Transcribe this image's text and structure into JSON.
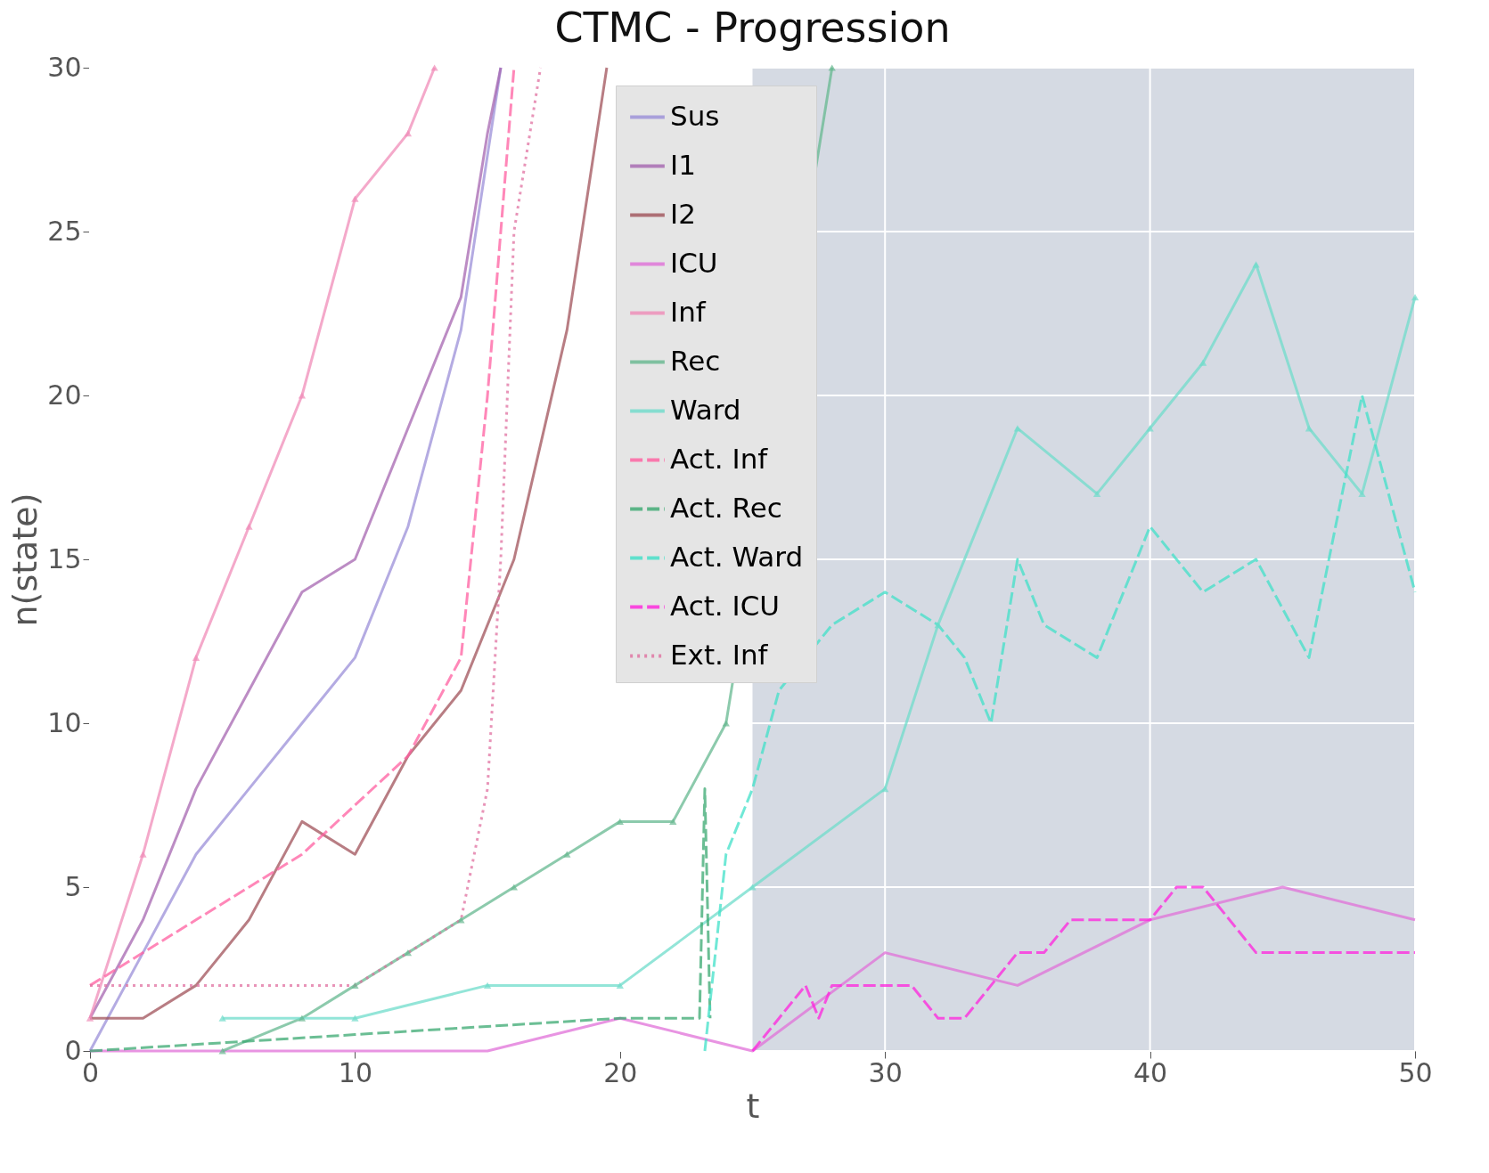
{
  "chart_data": {
    "type": "line",
    "title": "CTMC - Progression",
    "xlabel": "t",
    "ylabel": "n(state)",
    "xlim": [
      0,
      50
    ],
    "ylim": [
      0,
      30
    ],
    "xticks": [
      0,
      10,
      20,
      30,
      40,
      50
    ],
    "yticks": [
      0,
      5,
      10,
      15,
      20,
      25,
      30
    ],
    "grid": true,
    "legend": "top",
    "marker": "none",
    "line_style": "solid",
    "bands": [
      {
        "axis": "x",
        "from": 25,
        "to": 50,
        "color": "#d5dae3"
      }
    ],
    "series": [
      {
        "name": "Sus",
        "color": "#9b8fd8",
        "x": [
          0,
          2,
          4,
          6,
          8,
          10,
          12,
          14,
          15.5
        ],
        "values": [
          0,
          3,
          6,
          8,
          10,
          12,
          16,
          22,
          30
        ]
      },
      {
        "name": "I1",
        "color": "#a566b0",
        "x": [
          0,
          2,
          4,
          6,
          8,
          10,
          12,
          14,
          15,
          15.5
        ],
        "values": [
          1,
          4,
          8,
          11,
          14,
          15,
          19,
          23,
          28,
          30
        ]
      },
      {
        "name": "I2",
        "color": "#a0525a",
        "x": [
          0,
          2,
          4,
          6,
          8,
          10,
          12,
          14,
          16,
          18,
          19.5
        ],
        "values": [
          1,
          1,
          2,
          4,
          7,
          6,
          9,
          11,
          15,
          22,
          30
        ]
      },
      {
        "name": "ICU",
        "color": "#e070d8",
        "x": [
          0,
          5,
          10,
          15,
          20,
          25,
          30,
          35,
          40,
          45,
          50
        ],
        "values": [
          0,
          0,
          0,
          0,
          1,
          0,
          3,
          2,
          4,
          5,
          4
        ]
      },
      {
        "name": "Inf",
        "color": "#f08cb8",
        "marker": "triangle",
        "x": [
          0,
          2,
          4,
          6,
          8,
          10,
          12,
          13
        ],
        "values": [
          1,
          6,
          12,
          16,
          20,
          26,
          28,
          30
        ]
      },
      {
        "name": "Rec",
        "color": "#66b890",
        "marker": "triangle",
        "x": [
          5,
          8,
          10,
          12,
          14,
          16,
          18,
          20,
          22,
          24,
          28
        ],
        "values": [
          0,
          1,
          2,
          3,
          4,
          5,
          6,
          7,
          7,
          10,
          30
        ]
      },
      {
        "name": "Ward",
        "color": "#6fdccb",
        "marker": "triangle",
        "x": [
          5,
          10,
          15,
          20,
          25,
          30,
          32,
          35,
          38,
          40,
          42,
          44,
          46,
          48,
          50
        ],
        "values": [
          1,
          1,
          2,
          2,
          5,
          8,
          13,
          19,
          17,
          19,
          21,
          24,
          19,
          17,
          23
        ]
      },
      {
        "name": "Act. Inf",
        "color": "#ff5fa0",
        "line_style": "dashed",
        "x": [
          0,
          4,
          8,
          12,
          14,
          15,
          16
        ],
        "values": [
          2,
          4,
          6,
          9,
          12,
          20,
          30
        ]
      },
      {
        "name": "Act. Rec",
        "color": "#3aa870",
        "line_style": "dashed",
        "x": [
          0,
          10,
          20,
          23,
          23.2,
          23.4
        ],
        "values": [
          0,
          0.5,
          1,
          1,
          8,
          1
        ]
      },
      {
        "name": "Act. Ward",
        "color": "#40e0c8",
        "line_style": "dashed",
        "x": [
          23.2,
          24,
          25,
          26,
          28,
          30,
          32,
          33,
          34,
          35,
          36,
          38,
          40,
          42,
          44,
          46,
          48,
          50
        ],
        "values": [
          0,
          6,
          8,
          11,
          13,
          14,
          13,
          12,
          10,
          15,
          13,
          12,
          16,
          14,
          15,
          12,
          20,
          14
        ]
      },
      {
        "name": "Act. ICU",
        "color": "#ff22dd",
        "line_style": "dashed",
        "x": [
          25,
          26,
          27,
          27.5,
          28,
          29,
          31,
          32,
          33,
          34,
          35,
          36,
          37,
          39,
          40,
          41,
          42,
          44,
          46,
          50
        ],
        "values": [
          0,
          1,
          2,
          1,
          2,
          2,
          2,
          1,
          1,
          2,
          3,
          3,
          4,
          4,
          4,
          5,
          5,
          3,
          3,
          3
        ]
      },
      {
        "name": "Ext. Inf",
        "color": "#e070a0",
        "line_style": "dotted",
        "x": [
          0,
          5,
          10,
          14,
          15,
          15.5,
          16,
          17
        ],
        "values": [
          2,
          2,
          2,
          4,
          8,
          15,
          25,
          30
        ]
      }
    ]
  }
}
